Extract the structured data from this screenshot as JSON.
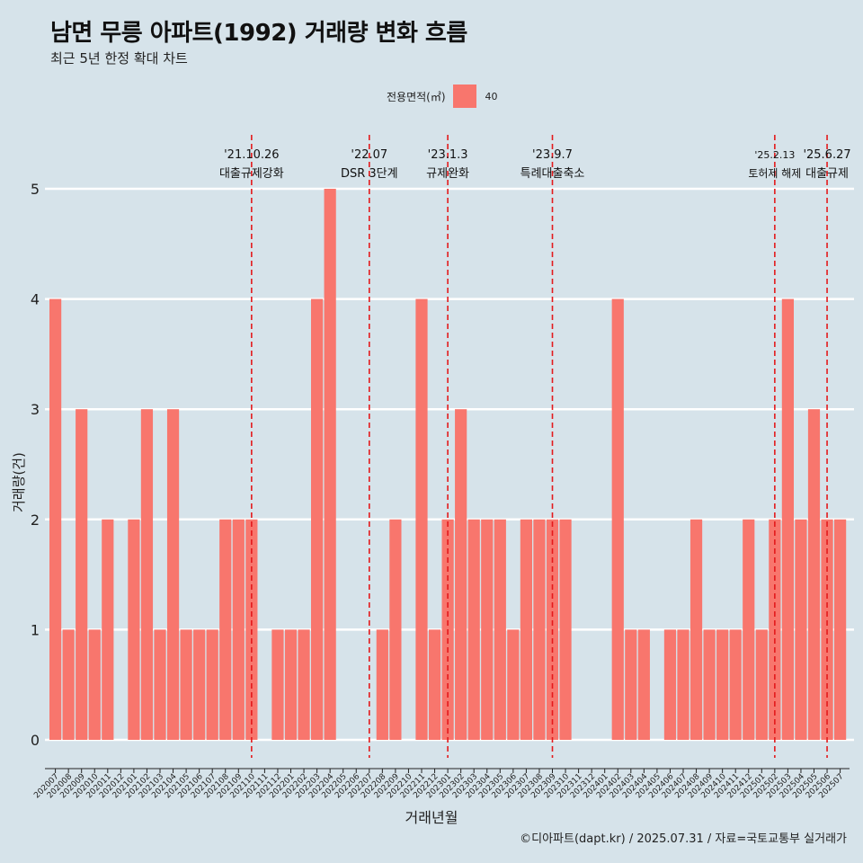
{
  "header": {
    "title": "남면 무릉 아파트(1992) 거래량 변화 흐름",
    "subtitle": "최근 5년 한정 확대 차트"
  },
  "legend": {
    "title": "전용면적(㎡)",
    "items": [
      {
        "label": "40",
        "color": "#f8766d"
      }
    ]
  },
  "caption": "©디아파트(dapt.kr) / 2025.07.31 / 자료=국토교통부 실거래가",
  "chart_data": {
    "type": "bar",
    "xlabel": "거래년월",
    "ylabel": "거래량(건)",
    "ylim": [
      0,
      5
    ],
    "yticks": [
      "0",
      "1",
      "2",
      "3",
      "4",
      "5"
    ],
    "grid": true,
    "legend_position": "top",
    "categories": [
      "202007",
      "202008",
      "202009",
      "202010",
      "202011",
      "202012",
      "202101",
      "202102",
      "202103",
      "202104",
      "202105",
      "202106",
      "202107",
      "202108",
      "202109",
      "202110",
      "202111",
      "202112",
      "202201",
      "202202",
      "202203",
      "202204",
      "202205",
      "202206",
      "202207",
      "202208",
      "202209",
      "202210",
      "202211",
      "202212",
      "202301",
      "202302",
      "202303",
      "202304",
      "202305",
      "202306",
      "202307",
      "202308",
      "202309",
      "202310",
      "202311",
      "202312",
      "202401",
      "202402",
      "202403",
      "202404",
      "202405",
      "202406",
      "202407",
      "202408",
      "202409",
      "202410",
      "202411",
      "202412",
      "202501",
      "202502",
      "202503",
      "202504",
      "202505",
      "202506",
      "202507"
    ],
    "series": [
      {
        "name": "40",
        "color": "#f8766d",
        "values": [
          4,
          1,
          3,
          1,
          2,
          0,
          2,
          3,
          1,
          3,
          1,
          1,
          1,
          2,
          2,
          2,
          0,
          1,
          1,
          1,
          4,
          5,
          0,
          0,
          0,
          1,
          2,
          0,
          4,
          1,
          2,
          3,
          2,
          2,
          2,
          1,
          2,
          2,
          2,
          2,
          0,
          0,
          0,
          4,
          1,
          1,
          0,
          1,
          1,
          2,
          1,
          1,
          1,
          2,
          1,
          2,
          4,
          2,
          3,
          2,
          2
        ]
      }
    ],
    "annotations": [
      {
        "category": "202110",
        "date": "'21.10.26",
        "label": "대출규제강화"
      },
      {
        "category": "202207",
        "date": "'22.07",
        "label": "DSR 3단계"
      },
      {
        "category": "202301",
        "date": "'23.1.3",
        "label": "규제완화"
      },
      {
        "category": "202309",
        "date": "'23.9.7",
        "label": "특례대출축소"
      },
      {
        "category": "202502",
        "date": "'25.2.13",
        "label": "토허제 해제"
      },
      {
        "category": "202506",
        "date": "'25.6.27",
        "label": "대출규제"
      }
    ]
  }
}
